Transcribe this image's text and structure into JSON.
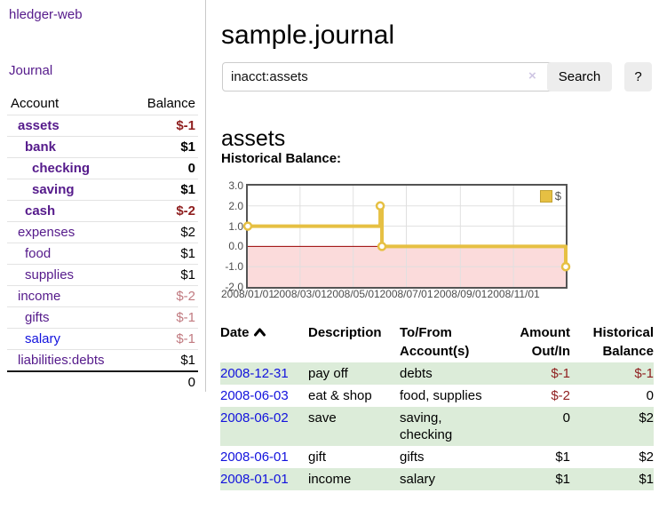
{
  "app": {
    "brand": "hledger-web",
    "nav_journal": "Journal"
  },
  "sidebar": {
    "columns": {
      "account": "Account",
      "balance": "Balance"
    },
    "accounts": [
      {
        "name": "assets",
        "indent": 1,
        "bold": true,
        "balance": "$-1",
        "balance_style": "neg-strong"
      },
      {
        "name": "bank",
        "indent": 2,
        "bold": true,
        "balance": "$1",
        "balance_style": "pos"
      },
      {
        "name": "checking",
        "indent": 3,
        "bold": true,
        "balance": "0",
        "balance_style": "pos"
      },
      {
        "name": "saving",
        "indent": 3,
        "bold": true,
        "balance": "$1",
        "balance_style": "pos"
      },
      {
        "name": "cash",
        "indent": 2,
        "bold": true,
        "balance": "$-2",
        "balance_style": "neg-strong"
      },
      {
        "name": "expenses",
        "indent": 1,
        "bold": false,
        "balance": "$2",
        "balance_style": "pos"
      },
      {
        "name": "food",
        "indent": 2,
        "bold": false,
        "balance": "$1",
        "balance_style": "pos"
      },
      {
        "name": "supplies",
        "indent": 2,
        "bold": false,
        "balance": "$1",
        "balance_style": "pos"
      },
      {
        "name": "income",
        "indent": 1,
        "bold": false,
        "balance": "$-2",
        "balance_style": "neg-dim"
      },
      {
        "name": "gifts",
        "indent": 2,
        "bold": false,
        "balance": "$-1",
        "balance_style": "neg-dim"
      },
      {
        "name": "salary",
        "indent": 2,
        "bold": false,
        "balance": "$-1",
        "balance_style": "neg-dim",
        "link_color": "blue"
      },
      {
        "name": "liabilities:debts",
        "indent": 1,
        "bold": false,
        "balance": "$1",
        "balance_style": "pos"
      }
    ],
    "total": "0"
  },
  "header": {
    "title": "sample.journal"
  },
  "search": {
    "value": "inacct:assets",
    "clear_icon": "×",
    "button": "Search",
    "help_button": "?"
  },
  "account_page": {
    "title": "assets",
    "chart_label": "Historical Balance:"
  },
  "chart_data": {
    "type": "line",
    "title": "Historical Balance",
    "series": [
      {
        "name": "$",
        "step": true,
        "points": [
          {
            "date": "2008-01-01",
            "value": 1
          },
          {
            "date": "2008-06-01",
            "value": 2
          },
          {
            "date": "2008-06-03",
            "value": 0
          },
          {
            "date": "2008-12-31",
            "value": -1
          }
        ]
      }
    ],
    "x_range": [
      "2008-01-01",
      "2008-12-31"
    ],
    "x_ticks": [
      "2008/01/01",
      "2008/03/01",
      "2008/05/01",
      "2008/07/01",
      "2008/09/01",
      "2008/11/01"
    ],
    "y_ticks": [
      3.0,
      2.0,
      1.0,
      0.0,
      -1.0,
      -2.0
    ],
    "ylim": [
      -2,
      3
    ],
    "grid": true,
    "legend": {
      "label": "$",
      "position": "top-right"
    }
  },
  "register": {
    "columns": {
      "date": "Date",
      "description": "Description",
      "tofrom": [
        "To/From",
        "Account(s)"
      ],
      "amount": [
        "Amount",
        "Out/In"
      ],
      "balance": [
        "Historical",
        "Balance"
      ]
    },
    "rows": [
      {
        "date": "2008-12-31",
        "description": "pay off",
        "accounts": "debts",
        "amount": "$-1",
        "amount_neg": true,
        "balance": "$-1",
        "balance_neg": true,
        "green": true
      },
      {
        "date": "2008-06-03",
        "description": "eat & shop",
        "accounts": "food, supplies",
        "amount": "$-2",
        "amount_neg": true,
        "balance": "0",
        "balance_neg": false,
        "green": false
      },
      {
        "date": "2008-06-02",
        "description": "save",
        "accounts": "saving, checking",
        "amount": "0",
        "amount_neg": false,
        "balance": "$2",
        "balance_neg": false,
        "green": true
      },
      {
        "date": "2008-06-01",
        "description": "gift",
        "accounts": "gifts",
        "amount": "$1",
        "amount_neg": false,
        "balance": "$2",
        "balance_neg": false,
        "green": false
      },
      {
        "date": "2008-01-01",
        "description": "income",
        "accounts": "salary",
        "amount": "$1",
        "amount_neg": false,
        "balance": "$1",
        "balance_neg": false,
        "green": true
      }
    ]
  },
  "colors": {
    "link_purple": "#551a8b",
    "link_blue": "#1212dd",
    "negative_strong": "#8f1f1f",
    "negative_dim": "#c17a80",
    "row_green": "#dcecd9",
    "divider_gray": "#c9c9c9",
    "sep_gray": "#e3e3e3",
    "button_gray": "#ededed",
    "clear_lavender": "#cfc6e3",
    "chart_line": "#e6c043",
    "legend_border": "#c2a233",
    "chart_zero": "#990000",
    "chart_negative_fill": "#fbdbdb",
    "chart_border": "#545454",
    "chart_grid": "#e0e0e0"
  }
}
